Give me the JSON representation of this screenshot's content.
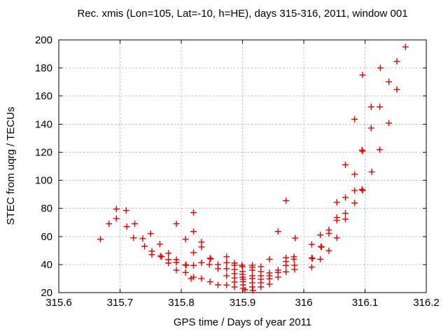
{
  "chart_data": {
    "type": "scatter",
    "title": "Rec. xmis (Lon=105, Lat=-10, h=HE), days 315-316, 2011, window 001",
    "xlabel": "GPS time / Days of year 2011",
    "ylabel": "STEC from uqrg / TECUs",
    "xlim": [
      315.6,
      316.2
    ],
    "ylim": [
      20,
      200
    ],
    "xticks": [
      315.6,
      315.7,
      315.8,
      315.9,
      316.0,
      316.1,
      316.2
    ],
    "xtick_labels": [
      "315.6",
      "315.7",
      "315.8",
      "315.9",
      "316",
      "316.1",
      "316.2"
    ],
    "yticks": [
      20,
      40,
      60,
      80,
      100,
      120,
      140,
      160,
      180,
      200
    ],
    "ytick_labels": [
      "20",
      "40",
      "60",
      "80",
      "100",
      "120",
      "140",
      "160",
      "180",
      "200"
    ],
    "grid": true,
    "legend_position": "none",
    "marker": "plus",
    "marker_color": "#dd0000",
    "grid_color": "#b4b4b4",
    "border_color": "#000000",
    "points": [
      [
        315.668,
        58.0
      ],
      [
        315.682,
        69.0
      ],
      [
        315.694,
        79.5
      ],
      [
        315.694,
        72.7
      ],
      [
        315.71,
        78.5
      ],
      [
        315.711,
        67.0
      ],
      [
        315.722,
        59.0
      ],
      [
        315.724,
        69.0
      ],
      [
        315.737,
        58.5
      ],
      [
        315.74,
        53.0
      ],
      [
        315.75,
        62.0
      ],
      [
        315.752,
        49.5
      ],
      [
        315.752,
        47.0
      ],
      [
        315.765,
        54.5
      ],
      [
        315.766,
        46.0
      ],
      [
        315.768,
        45.5
      ],
      [
        315.779,
        48.0
      ],
      [
        315.779,
        43.5
      ],
      [
        315.779,
        41.0
      ],
      [
        315.792,
        69.0
      ],
      [
        315.792,
        43.5
      ],
      [
        315.792,
        41.5
      ],
      [
        315.792,
        36.0
      ],
      [
        315.807,
        58.0
      ],
      [
        315.807,
        39.8
      ],
      [
        315.808,
        39.4
      ],
      [
        315.807,
        34.3
      ],
      [
        315.816,
        30.0
      ],
      [
        315.82,
        77.0
      ],
      [
        315.82,
        63.5
      ],
      [
        315.82,
        48.5
      ],
      [
        315.82,
        39.3
      ],
      [
        315.82,
        31.0
      ],
      [
        315.833,
        56.0
      ],
      [
        315.833,
        52.5
      ],
      [
        315.833,
        41.3
      ],
      [
        315.833,
        30.0
      ],
      [
        315.847,
        44.5
      ],
      [
        315.848,
        44.0
      ],
      [
        315.846,
        40.0
      ],
      [
        315.847,
        27.7
      ],
      [
        315.86,
        40.0
      ],
      [
        315.86,
        37.0
      ],
      [
        315.86,
        25.5
      ],
      [
        315.874,
        45.5
      ],
      [
        315.874,
        41.3
      ],
      [
        315.874,
        37.0
      ],
      [
        315.874,
        32.0
      ],
      [
        315.874,
        25.4
      ],
      [
        315.887,
        41.0
      ],
      [
        315.887,
        39.4
      ],
      [
        315.887,
        36.5
      ],
      [
        315.887,
        33.5
      ],
      [
        315.887,
        30.5
      ],
      [
        315.887,
        27.5
      ],
      [
        315.887,
        24.0
      ],
      [
        315.899,
        39.5
      ],
      [
        315.9,
        38.5
      ],
      [
        315.9,
        35.0
      ],
      [
        315.9,
        33.0
      ],
      [
        315.9,
        31.0
      ],
      [
        315.901,
        29.5
      ],
      [
        315.901,
        27.8
      ],
      [
        315.901,
        25.5
      ],
      [
        315.901,
        23.0
      ],
      [
        315.904,
        22.0
      ],
      [
        315.916,
        39.5
      ],
      [
        315.916,
        38.0
      ],
      [
        315.916,
        36.0
      ],
      [
        315.916,
        32.0
      ],
      [
        315.916,
        30.0
      ],
      [
        315.916,
        27.0
      ],
      [
        315.916,
        24.0
      ],
      [
        315.917,
        21.5
      ],
      [
        315.93,
        38.5
      ],
      [
        315.93,
        35.0
      ],
      [
        315.93,
        32.0
      ],
      [
        315.93,
        29.5
      ],
      [
        315.93,
        27.0
      ],
      [
        315.93,
        24.0
      ],
      [
        315.944,
        43.8
      ],
      [
        315.944,
        34.0
      ],
      [
        315.944,
        32.0
      ],
      [
        315.944,
        29.8
      ],
      [
        315.944,
        26.0
      ],
      [
        315.958,
        63.5
      ],
      [
        315.958,
        36.0
      ],
      [
        315.958,
        34.3
      ],
      [
        315.958,
        31.0
      ],
      [
        315.971,
        85.5
      ],
      [
        315.971,
        44.8
      ],
      [
        315.971,
        42.1
      ],
      [
        315.971,
        39.3
      ],
      [
        315.971,
        34.8
      ],
      [
        315.984,
        45.5
      ],
      [
        315.984,
        43.8
      ],
      [
        315.986,
        58.8
      ],
      [
        315.985,
        39.5
      ],
      [
        315.985,
        36.5
      ],
      [
        316.013,
        54.3
      ],
      [
        316.013,
        44.7
      ],
      [
        316.014,
        44.3
      ],
      [
        316.013,
        38.1
      ],
      [
        316.027,
        61.0
      ],
      [
        316.028,
        52.8
      ],
      [
        316.029,
        52.4
      ],
      [
        316.027,
        43.8
      ],
      [
        316.041,
        64.6
      ],
      [
        316.041,
        62.1
      ],
      [
        316.041,
        49.8
      ],
      [
        316.054,
        84.3
      ],
      [
        316.054,
        73.5
      ],
      [
        316.054,
        71.5
      ],
      [
        316.054,
        59.0
      ],
      [
        316.068,
        111.0
      ],
      [
        316.068,
        87.7
      ],
      [
        316.068,
        76.5
      ],
      [
        316.068,
        72.3
      ],
      [
        316.083,
        143.5
      ],
      [
        316.083,
        104.3
      ],
      [
        316.083,
        92.7
      ],
      [
        316.083,
        83.8
      ],
      [
        316.095,
        121.5
      ],
      [
        316.096,
        120.7
      ],
      [
        316.095,
        93.5
      ],
      [
        316.096,
        92.8
      ],
      [
        316.096,
        175.0
      ],
      [
        316.11,
        152.3
      ],
      [
        316.11,
        137.2
      ],
      [
        316.111,
        106.0
      ],
      [
        316.124,
        152.3
      ],
      [
        316.124,
        121.8
      ],
      [
        316.125,
        180.0
      ],
      [
        316.139,
        170.2
      ],
      [
        316.139,
        140.7
      ],
      [
        316.152,
        184.7
      ],
      [
        316.152,
        164.7
      ],
      [
        316.166,
        195.0
      ]
    ]
  }
}
